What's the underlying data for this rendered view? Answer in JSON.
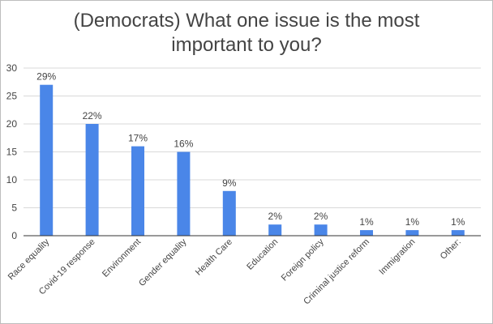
{
  "chart_data": {
    "type": "bar",
    "title_lines": [
      "(Democrats) What one issue is the most",
      "important to you?"
    ],
    "categories": [
      "Race equality",
      "Covid-19 response",
      "Environment",
      "Gender equality",
      "Health Care",
      "Education",
      "Foreign policy",
      "Criminal justice reform",
      "Immigration",
      "Other:"
    ],
    "values": [
      27,
      20,
      16,
      15,
      8,
      2,
      2,
      1,
      1,
      1
    ],
    "data_labels": [
      "29%",
      "22%",
      "17%",
      "16%",
      "9%",
      "2%",
      "2%",
      "1%",
      "1%",
      "1%"
    ],
    "y_ticks": [
      "0",
      "5",
      "10",
      "15",
      "20",
      "25",
      "30"
    ],
    "ylim": [
      0,
      30
    ],
    "grid": true,
    "legend": "none",
    "colors": {
      "bar": "#4a86e8",
      "grid": "#d9d9d9",
      "axis": "#333333",
      "text": "#444444"
    }
  }
}
